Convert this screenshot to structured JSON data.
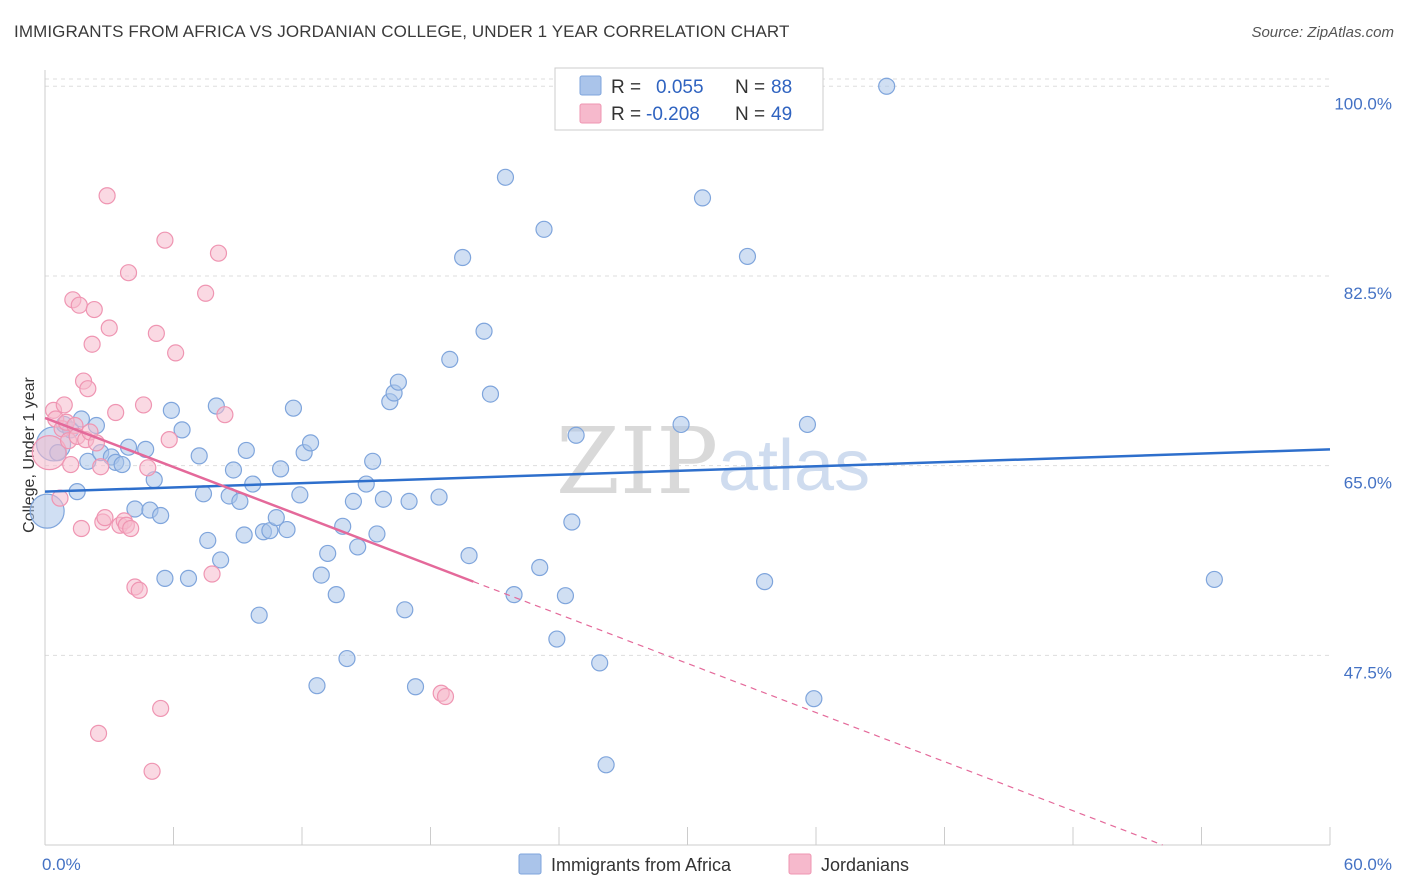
{
  "header": {
    "title": "IMMIGRANTS FROM AFRICA VS JORDANIAN COLLEGE, UNDER 1 YEAR CORRELATION CHART",
    "source": "Source: ZipAtlas.com"
  },
  "watermark": {
    "zip": "ZIP",
    "atlas": "atlas"
  },
  "colors": {
    "blue_fill": "#aac4ea",
    "blue_stroke": "#7fa5dc",
    "blue_line": "#2e6fcc",
    "pink_fill": "#f6b9cc",
    "pink_stroke": "#ef95b2",
    "pink_line": "#e4699a",
    "grid": "#dddddd",
    "tick_text": "#4472c4"
  },
  "legend": {
    "rows": [
      {
        "r_label": "R =",
        "r_value": "0.055",
        "n_label": "N =",
        "n_value": "88"
      },
      {
        "r_label": "R =",
        "r_value": "-0.208",
        "n_label": "N =",
        "n_value": "49"
      }
    ]
  },
  "bottom_legend": [
    "Immigrants from Africa",
    "Jordanians"
  ],
  "chart_data": {
    "type": "scatter",
    "title": "IMMIGRANTS FROM AFRICA VS JORDANIAN COLLEGE, UNDER 1 YEAR CORRELATION CHART",
    "xlabel": "",
    "ylabel": "College, Under 1 year",
    "xlim": [
      0,
      60
    ],
    "ylim": [
      30,
      101.5
    ],
    "x_tick_labels": [
      "0.0%",
      "60.0%"
    ],
    "y_ticks": [
      47.5,
      65.0,
      82.5,
      100.0
    ],
    "y_tick_labels": [
      "47.5%",
      "65.0%",
      "82.5%",
      "100.0%"
    ],
    "grid": "horizontal-dashed",
    "legend_position": "top-center",
    "series": [
      {
        "name": "Immigrants from Africa",
        "color": "#aac4ea",
        "R": 0.055,
        "N": 88,
        "trend": {
          "x": [
            0,
            60
          ],
          "y": [
            62.6,
            66.5
          ]
        },
        "points": [
          {
            "x": 0.1,
            "y": 60.8,
            "big": true
          },
          {
            "x": 0.4,
            "y": 67.0,
            "big": true
          },
          {
            "x": 0.6,
            "y": 66.2
          },
          {
            "x": 0.9,
            "y": 68.8
          },
          {
            "x": 1.2,
            "y": 68.3
          },
          {
            "x": 1.5,
            "y": 62.6
          },
          {
            "x": 1.7,
            "y": 69.3
          },
          {
            "x": 2.0,
            "y": 65.4
          },
          {
            "x": 2.4,
            "y": 68.7
          },
          {
            "x": 2.6,
            "y": 66.2
          },
          {
            "x": 3.1,
            "y": 65.8
          },
          {
            "x": 3.3,
            "y": 65.3
          },
          {
            "x": 3.6,
            "y": 65.1
          },
          {
            "x": 3.9,
            "y": 66.7
          },
          {
            "x": 4.2,
            "y": 61.0
          },
          {
            "x": 4.7,
            "y": 66.5
          },
          {
            "x": 4.9,
            "y": 60.9
          },
          {
            "x": 5.1,
            "y": 63.7
          },
          {
            "x": 5.4,
            "y": 60.4
          },
          {
            "x": 5.6,
            "y": 54.6
          },
          {
            "x": 5.9,
            "y": 70.1
          },
          {
            "x": 6.4,
            "y": 68.3
          },
          {
            "x": 6.7,
            "y": 54.6
          },
          {
            "x": 7.2,
            "y": 65.9
          },
          {
            "x": 7.4,
            "y": 62.4
          },
          {
            "x": 7.6,
            "y": 58.1
          },
          {
            "x": 8.0,
            "y": 70.5
          },
          {
            "x": 8.2,
            "y": 56.3
          },
          {
            "x": 8.6,
            "y": 62.2
          },
          {
            "x": 8.8,
            "y": 64.6
          },
          {
            "x": 9.1,
            "y": 61.7
          },
          {
            "x": 9.3,
            "y": 58.6
          },
          {
            "x": 9.4,
            "y": 66.4
          },
          {
            "x": 9.7,
            "y": 63.3
          },
          {
            "x": 10.0,
            "y": 51.2
          },
          {
            "x": 10.2,
            "y": 58.9
          },
          {
            "x": 10.5,
            "y": 59.0
          },
          {
            "x": 10.8,
            "y": 60.2
          },
          {
            "x": 11.0,
            "y": 64.7
          },
          {
            "x": 11.3,
            "y": 59.1
          },
          {
            "x": 11.6,
            "y": 70.3
          },
          {
            "x": 11.9,
            "y": 62.3
          },
          {
            "x": 12.1,
            "y": 66.2
          },
          {
            "x": 12.4,
            "y": 67.1
          },
          {
            "x": 12.7,
            "y": 44.7
          },
          {
            "x": 12.9,
            "y": 54.9
          },
          {
            "x": 13.2,
            "y": 56.9
          },
          {
            "x": 13.6,
            "y": 53.1
          },
          {
            "x": 13.9,
            "y": 59.4
          },
          {
            "x": 14.1,
            "y": 47.2
          },
          {
            "x": 14.4,
            "y": 61.7
          },
          {
            "x": 14.6,
            "y": 57.5
          },
          {
            "x": 15.0,
            "y": 63.3
          },
          {
            "x": 15.3,
            "y": 65.4
          },
          {
            "x": 15.5,
            "y": 58.7
          },
          {
            "x": 15.8,
            "y": 61.9
          },
          {
            "x": 16.1,
            "y": 70.9
          },
          {
            "x": 16.3,
            "y": 71.7
          },
          {
            "x": 16.5,
            "y": 72.7
          },
          {
            "x": 16.8,
            "y": 51.7
          },
          {
            "x": 17.0,
            "y": 61.7
          },
          {
            "x": 17.3,
            "y": 44.6
          },
          {
            "x": 18.4,
            "y": 62.1
          },
          {
            "x": 18.9,
            "y": 74.8
          },
          {
            "x": 19.5,
            "y": 84.2
          },
          {
            "x": 19.8,
            "y": 56.7
          },
          {
            "x": 20.5,
            "y": 77.4
          },
          {
            "x": 20.8,
            "y": 71.6
          },
          {
            "x": 21.5,
            "y": 91.6
          },
          {
            "x": 21.9,
            "y": 53.1
          },
          {
            "x": 23.1,
            "y": 55.6
          },
          {
            "x": 23.3,
            "y": 86.8
          },
          {
            "x": 23.9,
            "y": 49.0
          },
          {
            "x": 24.3,
            "y": 53.0
          },
          {
            "x": 24.6,
            "y": 59.8
          },
          {
            "x": 24.8,
            "y": 67.8
          },
          {
            "x": 25.9,
            "y": 46.8
          },
          {
            "x": 26.2,
            "y": 37.4
          },
          {
            "x": 29.7,
            "y": 68.8
          },
          {
            "x": 30.7,
            "y": 89.7
          },
          {
            "x": 32.8,
            "y": 84.3
          },
          {
            "x": 33.6,
            "y": 54.3
          },
          {
            "x": 35.6,
            "y": 68.8
          },
          {
            "x": 35.9,
            "y": 43.5
          },
          {
            "x": 39.3,
            "y": 100.0
          },
          {
            "x": 54.6,
            "y": 54.5
          }
        ]
      },
      {
        "name": "Jordanians",
        "color": "#f6b9cc",
        "R": -0.208,
        "N": 49,
        "trend": {
          "x": [
            0,
            20
          ],
          "y": [
            69.4,
            54.3
          ]
        },
        "trend_extension": {
          "x": [
            20,
            60
          ],
          "y": [
            54.3,
            24.1
          ]
        },
        "points": [
          {
            "x": 0.2,
            "y": 66.2,
            "big": true
          },
          {
            "x": 0.4,
            "y": 70.1
          },
          {
            "x": 0.5,
            "y": 69.3
          },
          {
            "x": 0.7,
            "y": 62.0
          },
          {
            "x": 0.8,
            "y": 68.4
          },
          {
            "x": 0.9,
            "y": 70.6
          },
          {
            "x": 1.0,
            "y": 69.0
          },
          {
            "x": 1.1,
            "y": 67.3
          },
          {
            "x": 1.2,
            "y": 65.1
          },
          {
            "x": 1.3,
            "y": 80.3
          },
          {
            "x": 1.4,
            "y": 68.7
          },
          {
            "x": 1.5,
            "y": 67.7
          },
          {
            "x": 1.6,
            "y": 79.8
          },
          {
            "x": 1.7,
            "y": 59.2
          },
          {
            "x": 1.8,
            "y": 72.8
          },
          {
            "x": 1.9,
            "y": 67.4
          },
          {
            "x": 2.0,
            "y": 72.1
          },
          {
            "x": 2.1,
            "y": 68.1
          },
          {
            "x": 2.2,
            "y": 76.2
          },
          {
            "x": 2.3,
            "y": 79.4
          },
          {
            "x": 2.4,
            "y": 67.1
          },
          {
            "x": 2.5,
            "y": 40.3
          },
          {
            "x": 2.6,
            "y": 64.9
          },
          {
            "x": 2.7,
            "y": 59.8
          },
          {
            "x": 2.8,
            "y": 60.2
          },
          {
            "x": 2.9,
            "y": 89.9
          },
          {
            "x": 3.0,
            "y": 77.7
          },
          {
            "x": 3.3,
            "y": 69.9
          },
          {
            "x": 3.5,
            "y": 59.5
          },
          {
            "x": 3.7,
            "y": 59.9
          },
          {
            "x": 3.8,
            "y": 59.5
          },
          {
            "x": 3.9,
            "y": 82.8
          },
          {
            "x": 4.0,
            "y": 59.2
          },
          {
            "x": 4.2,
            "y": 53.8
          },
          {
            "x": 4.4,
            "y": 53.5
          },
          {
            "x": 4.6,
            "y": 70.6
          },
          {
            "x": 4.8,
            "y": 64.8
          },
          {
            "x": 5.0,
            "y": 36.8
          },
          {
            "x": 5.2,
            "y": 77.2
          },
          {
            "x": 5.4,
            "y": 42.6
          },
          {
            "x": 5.6,
            "y": 85.8
          },
          {
            "x": 5.8,
            "y": 67.4
          },
          {
            "x": 6.1,
            "y": 75.4
          },
          {
            "x": 7.5,
            "y": 80.9
          },
          {
            "x": 7.8,
            "y": 55.0
          },
          {
            "x": 8.1,
            "y": 84.6
          },
          {
            "x": 8.4,
            "y": 69.7
          },
          {
            "x": 18.5,
            "y": 44.0
          },
          {
            "x": 18.7,
            "y": 43.7
          }
        ]
      }
    ]
  }
}
